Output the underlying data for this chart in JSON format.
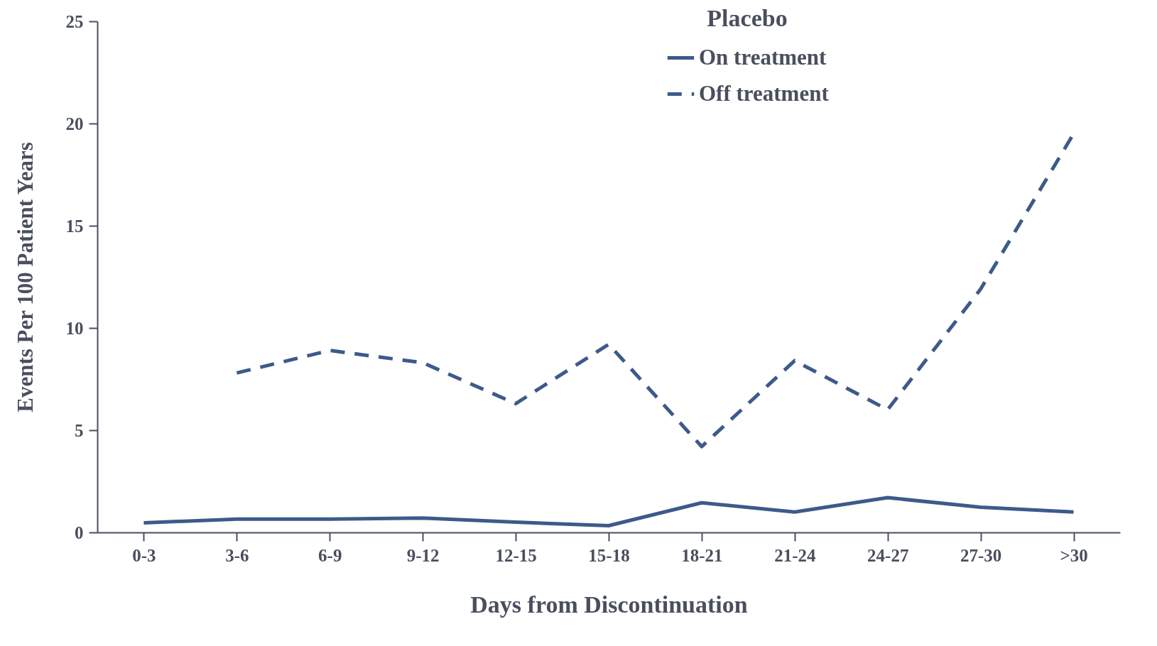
{
  "chart_data": {
    "type": "line",
    "xlabel": "Days from Discontinuation",
    "ylabel": "Events Per 100 Patient Years",
    "legend_title": "Placebo",
    "categories": [
      "0-3",
      "3-6",
      "6-9",
      "9-12",
      "12-15",
      "15-18",
      "18-21",
      "21-24",
      "24-27",
      "27-30",
      ">30"
    ],
    "series": [
      {
        "name": "On treatment",
        "color": "#3d5a8a",
        "line_style": "solid",
        "values": [
          0.47,
          0.65,
          0.65,
          0.7,
          0.5,
          0.33,
          1.45,
          1.0,
          1.7,
          1.23,
          1.0
        ]
      },
      {
        "name": "Off treatment",
        "color": "#3d5a8a",
        "line_style": "dashed",
        "values": [
          null,
          7.8,
          8.9,
          8.3,
          6.3,
          9.2,
          4.2,
          8.4,
          6.0,
          11.9,
          19.5
        ]
      }
    ],
    "ylim": [
      0,
      25
    ],
    "yticks": [
      0,
      5,
      10,
      15,
      20,
      25
    ],
    "grid": false,
    "legend": "top right",
    "marker": "none"
  }
}
